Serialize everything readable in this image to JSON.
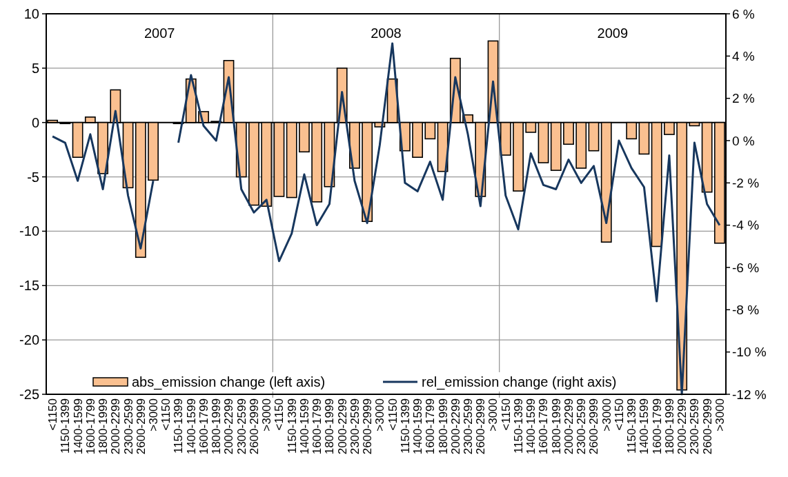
{
  "chart_data": {
    "type": "bar",
    "categories": [
      "<1150",
      "1150-1399",
      "1400-1599",
      "1600-1799",
      "1800-1999",
      "2000-2299",
      "2300-2599",
      "2600-2999",
      ">3000",
      "<1150",
      "1150-1399",
      "1400-1599",
      "1600-1799",
      "1800-1999",
      "2000-2299",
      "2300-2599",
      "2600-2999",
      ">3000",
      "<1150",
      "1150-1399",
      "1400-1599",
      "1600-1799",
      "1800-1999",
      "2000-2299",
      "2300-2599",
      "2600-2999",
      ">3000",
      "<1150",
      "1150-1399",
      "1400-1599",
      "1600-1799",
      "1800-1999",
      "2000-2299",
      "2300-2599",
      "2600-2999",
      ">3000",
      "<1150",
      "1150-1399",
      "1400-1599",
      "1600-1799",
      "1800-1999",
      "2000-2299",
      "2300-2599",
      "2600-2999",
      ">3000",
      "<1150",
      "1150-1399",
      "1400-1599",
      "1600-1799",
      "1800-1999",
      "2000-2299",
      "2300-2599",
      "2600-2999",
      ">3000"
    ],
    "series": [
      {
        "name": "abs_emission change (left axis)",
        "color": "#fac090",
        "values": [
          0.2,
          -0.1,
          -3.2,
          0.5,
          -4.7,
          3.0,
          -6.0,
          -12.4,
          -5.3,
          null,
          -0.1,
          4.0,
          1.0,
          0.1,
          5.7,
          -5.0,
          -7.6,
          -7.7,
          -6.8,
          -6.9,
          -2.7,
          -7.3,
          -5.9,
          5.0,
          -4.2,
          -9.1,
          -0.4,
          4.0,
          -2.6,
          -3.2,
          -1.5,
          -4.5,
          5.9,
          0.7,
          -6.8,
          7.5,
          -3.0,
          -6.3,
          -0.9,
          -3.7,
          -4.4,
          -2.0,
          -4.2,
          -2.6,
          -11.0,
          0,
          -1.5,
          -2.9,
          -11.4,
          -1.1,
          -24.6,
          -0.3,
          -6.4,
          -11.1
        ]
      },
      {
        "name": "rel_emission change (right axis)",
        "type": "line",
        "axis": "y2",
        "color": "#17375e",
        "values": [
          0.2,
          -0.1,
          -1.9,
          0.3,
          -2.3,
          1.4,
          -2.6,
          -5.1,
          -1.9,
          null,
          -0.1,
          3.1,
          0.7,
          0.0,
          3.0,
          -2.3,
          -3.4,
          -2.8,
          -5.7,
          -4.4,
          -1.6,
          -4.0,
          -3.0,
          2.3,
          -1.9,
          -3.9,
          -0.2,
          4.6,
          -2.0,
          -2.4,
          -1.0,
          -2.8,
          3.0,
          0.3,
          -3.1,
          2.8,
          -2.6,
          -4.2,
          -0.6,
          -2.1,
          -2.3,
          -0.9,
          -2.0,
          -1.2,
          -3.9,
          0.0,
          -1.3,
          -2.2,
          -7.6,
          -0.7,
          -12.0,
          -0.1,
          -3.0,
          -4.0
        ]
      }
    ],
    "ylim": [
      -25,
      10
    ],
    "yticks": [
      -25,
      -20,
      -15,
      -10,
      -5,
      0,
      5,
      10
    ],
    "y2lim": [
      -12,
      6
    ],
    "y2ticks": [
      {
        "value": -12,
        "label": "-12 %"
      },
      {
        "value": -10,
        "label": "-10 %"
      },
      {
        "value": -8,
        "label": "-8 %"
      },
      {
        "value": -6,
        "label": "-6 %"
      },
      {
        "value": -4,
        "label": "-4 %"
      },
      {
        "value": -2,
        "label": "-2 %"
      },
      {
        "value": 0,
        "label": "0 %"
      },
      {
        "value": 2,
        "label": "2 %"
      },
      {
        "value": 4,
        "label": "4 %"
      },
      {
        "value": 6,
        "label": "6 %"
      }
    ],
    "annotations": [
      "2007",
      "2008",
      "2009"
    ],
    "grid": "y",
    "legend": "bottom",
    "marker": "none",
    "line_style": "solid"
  }
}
